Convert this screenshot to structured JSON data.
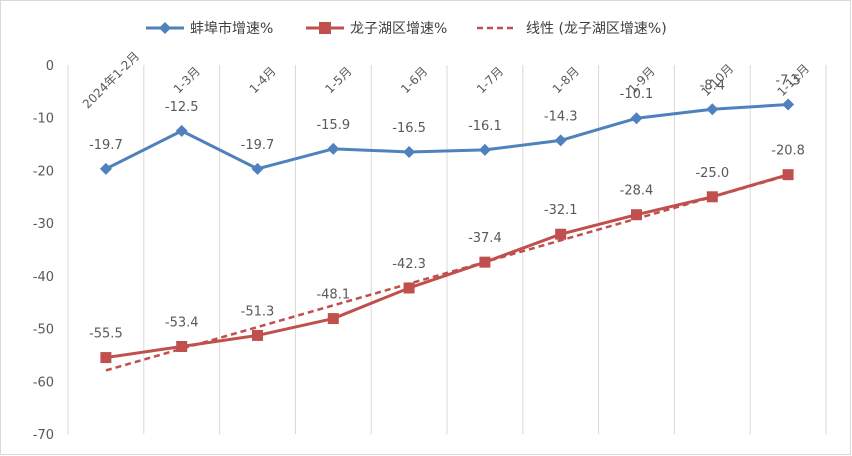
{
  "chart_data": {
    "type": "line",
    "categories": [
      "2024年1-2月",
      "1-3月",
      "1-4月",
      "1-5月",
      "1-6月",
      "1-7月",
      "1-8月",
      "1-9月",
      "1-10月",
      "1-11月"
    ],
    "ylim": [
      -70,
      0
    ],
    "yticks": [
      0,
      -10,
      -20,
      -30,
      -40,
      -50,
      -60,
      -70
    ],
    "grid": "vertical",
    "legend_position": "top",
    "series": [
      {
        "name": "蚌埠市增速%",
        "values": [
          -19.7,
          -12.5,
          -19.7,
          -15.9,
          -16.5,
          -16.1,
          -14.3,
          -10.1,
          -8.4,
          -7.5
        ],
        "color": "#4f81bd",
        "marker": "diamond",
        "labels": [
          "-19.7",
          "-12.5",
          "-19.7",
          "-15.9",
          "-16.5",
          "-16.1",
          "-14.3",
          "-10.1",
          "-8.4",
          "-7.5"
        ]
      },
      {
        "name": "龙子湖区增速%",
        "values": [
          -55.5,
          -53.4,
          -51.3,
          -48.1,
          -42.3,
          -37.4,
          -32.1,
          -28.4,
          -25.0,
          -20.8
        ],
        "color": "#c0504d",
        "marker": "square",
        "labels": [
          "-55.5",
          "-53.4",
          "-51.3",
          "-48.1",
          "-42.3",
          "-37.4",
          "-32.1",
          "-28.4",
          "-25.0",
          "-20.8"
        ]
      }
    ],
    "trendline": {
      "name": "线性 (龙子湖区增速%)",
      "of": "龙子湖区增速%",
      "type": "linear",
      "style": "dashed",
      "color": "#c0504d"
    }
  }
}
